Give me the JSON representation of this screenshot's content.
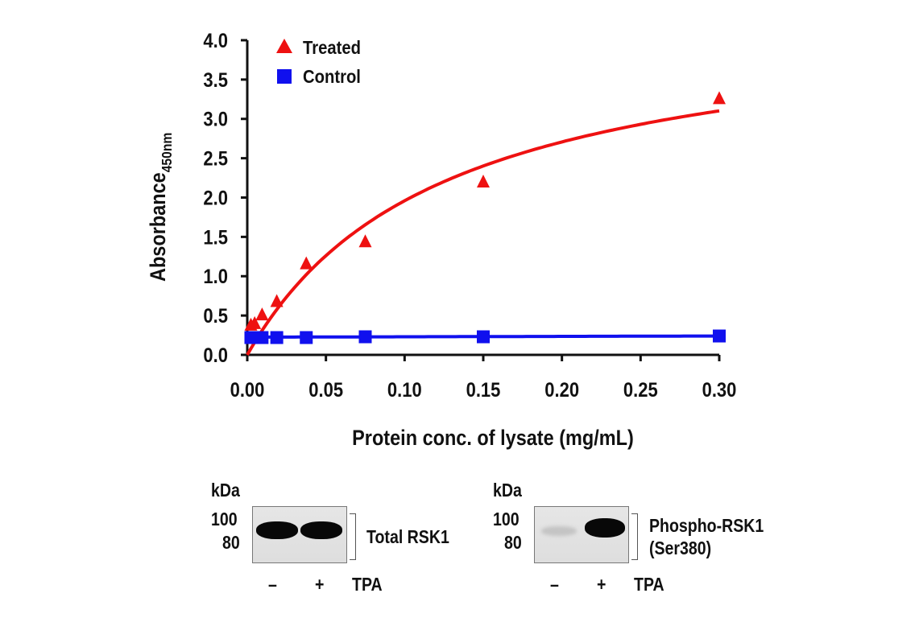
{
  "chart_data": {
    "type": "scatter",
    "title": "",
    "xlabel": "Protein conc. of lysate (mg/mL)",
    "ylabel": "Absorbance",
    "ylabel_sub": "450nm",
    "xlim": [
      0,
      0.3
    ],
    "ylim": [
      0,
      4.0
    ],
    "x_ticks": [
      "0.00",
      "0.05",
      "0.10",
      "0.15",
      "0.20",
      "0.25",
      "0.30"
    ],
    "x_tick_values": [
      0,
      0.05,
      0.1,
      0.15,
      0.2,
      0.25,
      0.3
    ],
    "y_ticks": [
      "0.0",
      "0.5",
      "1.0",
      "1.5",
      "2.0",
      "2.5",
      "3.0",
      "3.5",
      "4.0"
    ],
    "y_tick_values": [
      0,
      0.5,
      1.0,
      1.5,
      2.0,
      2.5,
      3.0,
      3.5,
      4.0
    ],
    "grid": false,
    "legend_position": "top-left",
    "series": [
      {
        "name": "Treated",
        "marker": "triangle",
        "color": "#ee1111",
        "x": [
          0.0023,
          0.0047,
          0.0094,
          0.01875,
          0.0375,
          0.075,
          0.15,
          0.3
        ],
        "y": [
          0.38,
          0.4,
          0.51,
          0.68,
          1.16,
          1.44,
          2.2,
          3.26
        ],
        "fit": {
          "type": "hyperbolic",
          "vmax": 4.38,
          "k": 0.1236
        }
      },
      {
        "name": "Control",
        "marker": "square",
        "color": "#1010ee",
        "x": [
          0.0023,
          0.0047,
          0.0094,
          0.01875,
          0.0375,
          0.075,
          0.15,
          0.3
        ],
        "y": [
          0.22,
          0.22,
          0.22,
          0.22,
          0.22,
          0.23,
          0.23,
          0.24
        ],
        "fit": {
          "type": "linear",
          "slope": 0.05,
          "intercept": 0.225
        }
      }
    ]
  },
  "blots": [
    {
      "kda_label": "kDa",
      "markers": [
        "100",
        "80"
      ],
      "lanes": [
        "–",
        "+"
      ],
      "treatment": "TPA",
      "target": [
        "Total RSK1"
      ],
      "band_intensity": [
        1.0,
        1.0
      ]
    },
    {
      "kda_label": "kDa",
      "markers": [
        "100",
        "80"
      ],
      "lanes": [
        "–",
        "+"
      ],
      "treatment": "TPA",
      "target": [
        "Phospho-RSK1",
        "(Ser380)"
      ],
      "band_intensity": [
        0.08,
        1.0
      ]
    }
  ]
}
